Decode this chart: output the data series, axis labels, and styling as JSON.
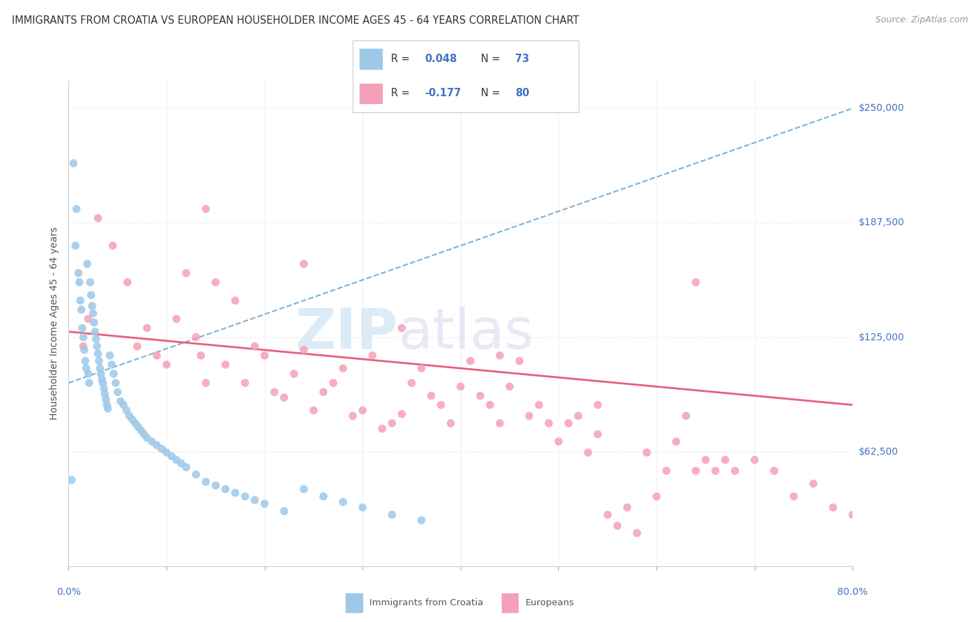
{
  "title": "IMMIGRANTS FROM CROATIA VS EUROPEAN HOUSEHOLDER INCOME AGES 45 - 64 YEARS CORRELATION CHART",
  "source": "Source: ZipAtlas.com",
  "ylabel": "Householder Income Ages 45 - 64 years",
  "y_tick_labels": [
    "",
    "$62,500",
    "$125,000",
    "$187,500",
    "$250,000"
  ],
  "y_tick_vals": [
    0,
    62500,
    125000,
    187500,
    250000
  ],
  "xlim": [
    0,
    80
  ],
  "ylim": [
    0,
    265000
  ],
  "color_croatia": "#9ec8e8",
  "color_europeans": "#f4a0b8",
  "color_trend_croatia": "#7ab0d8",
  "color_trend_europeans": "#e8607a",
  "watermark_zip": "ZIP",
  "watermark_atlas": "atlas",
  "legend_label1": "R = 0.048   N = 73",
  "legend_label2": "R = -0.177   N = 80",
  "croatia_x": [
    0.3,
    0.5,
    0.7,
    0.8,
    1.0,
    1.1,
    1.2,
    1.3,
    1.4,
    1.5,
    1.6,
    1.7,
    1.8,
    1.9,
    2.0,
    2.1,
    2.2,
    2.3,
    2.4,
    2.5,
    2.6,
    2.7,
    2.8,
    2.9,
    3.0,
    3.1,
    3.2,
    3.3,
    3.4,
    3.5,
    3.6,
    3.7,
    3.8,
    3.9,
    4.0,
    4.2,
    4.4,
    4.6,
    4.8,
    5.0,
    5.3,
    5.6,
    5.9,
    6.2,
    6.5,
    6.8,
    7.1,
    7.4,
    7.7,
    8.0,
    8.5,
    9.0,
    9.5,
    10.0,
    10.5,
    11.0,
    11.5,
    12.0,
    13.0,
    14.0,
    15.0,
    16.0,
    17.0,
    18.0,
    19.0,
    20.0,
    22.0,
    24.0,
    26.0,
    28.0,
    30.0,
    33.0,
    36.0
  ],
  "croatia_y": [
    47000,
    220000,
    175000,
    195000,
    160000,
    155000,
    145000,
    140000,
    130000,
    125000,
    118000,
    112000,
    108000,
    165000,
    105000,
    100000,
    155000,
    148000,
    142000,
    138000,
    133000,
    128000,
    124000,
    120000,
    116000,
    112000,
    108000,
    105000,
    102000,
    100000,
    97000,
    94000,
    91000,
    88000,
    86000,
    115000,
    110000,
    105000,
    100000,
    95000,
    90000,
    88000,
    85000,
    82000,
    80000,
    78000,
    76000,
    74000,
    72000,
    70000,
    68000,
    66000,
    64000,
    62000,
    60000,
    58000,
    56000,
    54000,
    50000,
    46000,
    44000,
    42000,
    40000,
    38000,
    36000,
    34000,
    30000,
    42000,
    38000,
    35000,
    32000,
    28000,
    25000
  ],
  "europeans_x": [
    1.5,
    2.0,
    3.0,
    4.5,
    6.0,
    7.0,
    8.0,
    9.0,
    10.0,
    11.0,
    12.0,
    13.0,
    13.5,
    14.0,
    15.0,
    16.0,
    17.0,
    18.0,
    19.0,
    20.0,
    21.0,
    22.0,
    23.0,
    24.0,
    25.0,
    26.0,
    27.0,
    28.0,
    29.0,
    30.0,
    31.0,
    32.0,
    33.0,
    34.0,
    35.0,
    36.0,
    37.0,
    38.0,
    39.0,
    40.0,
    41.0,
    42.0,
    43.0,
    44.0,
    45.0,
    46.0,
    47.0,
    48.0,
    49.0,
    50.0,
    51.0,
    52.0,
    53.0,
    54.0,
    55.0,
    56.0,
    57.0,
    58.0,
    59.0,
    60.0,
    61.0,
    62.0,
    63.0,
    64.0,
    65.0,
    66.0,
    67.0,
    68.0,
    70.0,
    72.0,
    74.0,
    76.0,
    78.0,
    80.0,
    14.0,
    24.0,
    34.0,
    44.0,
    54.0,
    64.0
  ],
  "europeans_y": [
    120000,
    135000,
    190000,
    175000,
    155000,
    120000,
    130000,
    115000,
    110000,
    135000,
    160000,
    125000,
    115000,
    100000,
    155000,
    110000,
    145000,
    100000,
    120000,
    115000,
    95000,
    92000,
    105000,
    118000,
    85000,
    95000,
    100000,
    108000,
    82000,
    85000,
    115000,
    75000,
    78000,
    83000,
    100000,
    108000,
    93000,
    88000,
    78000,
    98000,
    112000,
    93000,
    88000,
    78000,
    98000,
    112000,
    82000,
    88000,
    78000,
    68000,
    78000,
    82000,
    62000,
    72000,
    28000,
    22000,
    32000,
    18000,
    62000,
    38000,
    52000,
    68000,
    82000,
    52000,
    58000,
    52000,
    58000,
    52000,
    58000,
    52000,
    38000,
    45000,
    32000,
    28000,
    195000,
    165000,
    130000,
    115000,
    88000,
    155000
  ]
}
